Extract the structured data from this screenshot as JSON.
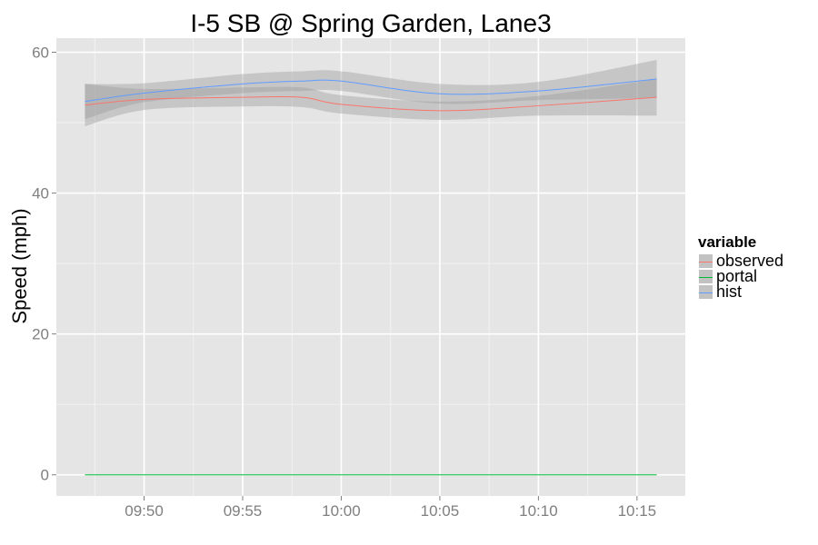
{
  "chart_data": {
    "type": "line",
    "title": "I-5 SB @ Spring Garden, Lane3",
    "xlabel": "",
    "ylabel": "Speed (mph)",
    "x_range": [
      "09:47",
      "10:16"
    ],
    "x_ticks": [
      "09:50",
      "09:55",
      "10:00",
      "10:05",
      "10:10",
      "10:15"
    ],
    "y_ticks": [
      0,
      20,
      40,
      60
    ],
    "ylim": [
      -3,
      62
    ],
    "grid": true,
    "legend": {
      "title": "variable",
      "placement": "right"
    },
    "series": [
      {
        "name": "observed",
        "color": "#F8766D",
        "x": [
          "09:47",
          "09:50",
          "09:55",
          "09:58",
          "10:00",
          "10:05",
          "10:10",
          "10:16"
        ],
        "y": [
          52.5,
          53.3,
          53.6,
          53.6,
          52.6,
          51.7,
          52.4,
          53.6
        ],
        "ci_lower": [
          49.5,
          51.8,
          52.3,
          52.2,
          51.3,
          50.4,
          51.0,
          51.0
        ],
        "ci_upper": [
          55.5,
          54.8,
          55.0,
          55.0,
          53.9,
          53.0,
          53.8,
          56.2
        ]
      },
      {
        "name": "portal",
        "color": "#00BA38",
        "x": [
          "09:47",
          "10:16"
        ],
        "y": [
          0,
          0
        ]
      },
      {
        "name": "hist",
        "color": "#619CFF",
        "x": [
          "09:47",
          "09:50",
          "09:55",
          "09:58",
          "10:00",
          "10:05",
          "10:10",
          "10:16"
        ],
        "y": [
          53.0,
          54.2,
          55.5,
          55.9,
          55.9,
          54.1,
          54.5,
          56.2
        ],
        "ci_lower": [
          50.5,
          52.9,
          54.2,
          54.5,
          54.5,
          52.7,
          53.2,
          53.5
        ],
        "ci_upper": [
          55.5,
          55.6,
          56.9,
          57.3,
          57.3,
          55.5,
          55.8,
          58.9
        ]
      }
    ]
  }
}
